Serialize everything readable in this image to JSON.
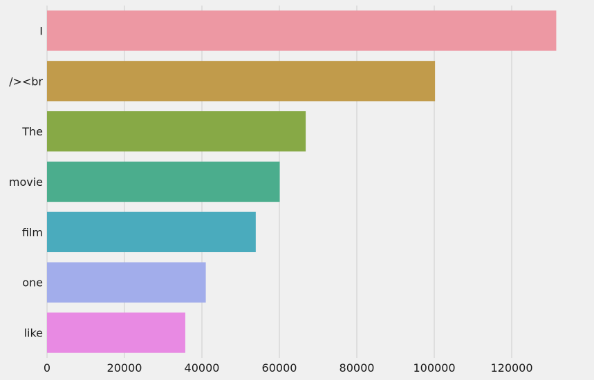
{
  "chart_data": {
    "type": "bar",
    "orientation": "horizontal",
    "title": "",
    "xlabel": "",
    "ylabel": "",
    "categories": [
      "I",
      "/><br",
      "The",
      "movie",
      "film",
      "one",
      "like"
    ],
    "values": [
      131500,
      100200,
      66800,
      60100,
      53900,
      41000,
      35700
    ],
    "colors": [
      "#ed98a3",
      "#c19b4b",
      "#87a946",
      "#4bad8d",
      "#4aabbd",
      "#a2adeb",
      "#e88ae3"
    ],
    "xlim": [
      0,
      135000
    ],
    "xticks": [
      0,
      20000,
      40000,
      60000,
      80000,
      100000,
      120000
    ],
    "xtick_labels": [
      "0",
      "20000",
      "40000",
      "60000",
      "80000",
      "100000",
      "120000"
    ],
    "grid": "vertical",
    "legend": "none"
  }
}
